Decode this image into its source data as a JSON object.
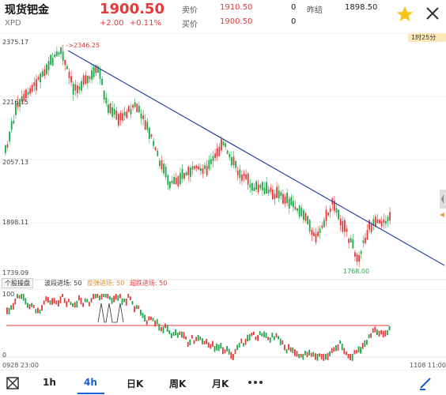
{
  "header": {
    "title": "现货钯金",
    "code": "XPD",
    "price": "1900.50",
    "change": "+2.00",
    "change_pct": "+0.11%",
    "sell_label": "卖价",
    "sell_value": "1910.50",
    "sell_qty": "0",
    "buy_label": "买价",
    "buy_value": "1900.50",
    "buy_qty": "0",
    "prev_close_label": "昨结",
    "prev_close_value": "1898.50"
  },
  "chart_data": {
    "type": "candlestick",
    "timeframe": "1时25分",
    "y_ticks": [
      "2375.17",
      "2216.15",
      "2057.13",
      "1898.11",
      "1739.09"
    ],
    "ylim": [
      1739.09,
      2375.17
    ],
    "max_annotation": "- ->2346.25",
    "min_annotation": "1768.00",
    "x_start": "0928 23:00",
    "x_end": "1108 11:00"
  },
  "indicator": {
    "name": "个股操盘",
    "items": [
      {
        "label": "波段进场: 50",
        "color": "#333333"
      },
      {
        "label": "反弹进场: 50",
        "color": "#e58a1f"
      },
      {
        "label": "超跌进场: 50",
        "color": "#e5393a"
      }
    ],
    "scale_top": "100",
    "scale_bottom": "0"
  },
  "tabs": [
    {
      "label": "1h"
    },
    {
      "label": "4h",
      "active": true
    },
    {
      "label": "日K"
    },
    {
      "label": "周K"
    },
    {
      "label": "月K"
    }
  ],
  "colors": {
    "up": "#e5393a",
    "down": "#1fa84a",
    "trend": "#2a45a8"
  }
}
